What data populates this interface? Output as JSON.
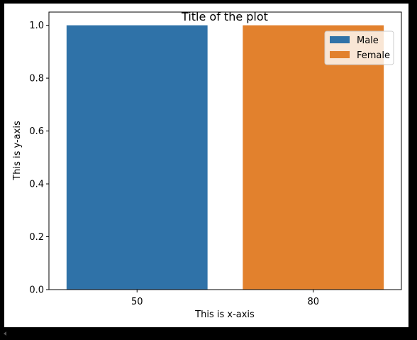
{
  "chart_data": {
    "type": "bar",
    "title": "Title of the plot",
    "xlabel": "This is x-axis",
    "ylabel": "This is y-axis",
    "categories": [
      "50",
      "80"
    ],
    "series": [
      {
        "name": "Male",
        "color": "#2f72a8",
        "values": [
          1.0,
          null
        ]
      },
      {
        "name": "Female",
        "color": "#e2812d",
        "values": [
          null,
          1.0
        ]
      }
    ],
    "ylim": [
      0,
      1.05
    ],
    "yticks": [
      0.0,
      0.2,
      0.4,
      0.6,
      0.8,
      1.0
    ],
    "ytick_labels": [
      "0.0",
      "0.2",
      "0.4",
      "0.6",
      "0.8",
      "1.0"
    ],
    "grid": false,
    "legend_position": "top-right"
  }
}
